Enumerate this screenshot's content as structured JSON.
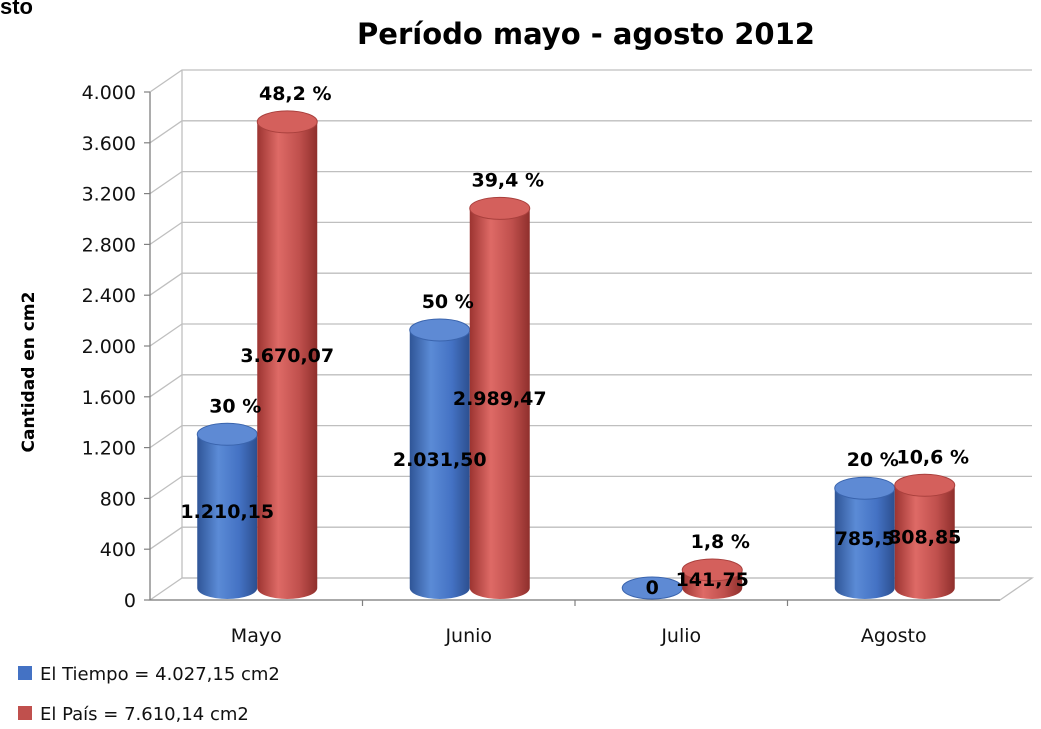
{
  "fragment": "sto",
  "chart_data": {
    "type": "bar",
    "title": "Período mayo - agosto 2012",
    "ylabel": "Cantidad en cm2",
    "xlabel": "",
    "ylim": [
      0,
      4000
    ],
    "yticks": [
      0,
      400,
      800,
      1200,
      1600,
      2000,
      2400,
      2800,
      3200,
      3600,
      4000
    ],
    "ytick_labels": [
      "0",
      "400",
      "800",
      "1.200",
      "1.600",
      "2.000",
      "2.400",
      "2.800",
      "3.200",
      "3.600",
      "4.000"
    ],
    "categories": [
      "Mayo",
      "Junio",
      "Julio",
      "Agosto"
    ],
    "grid": true,
    "legend_position": "bottom-left",
    "series": [
      {
        "name": "El Tiempo = 4.027,15 cm2",
        "color": "#4472C4",
        "values": [
          1210.15,
          2031.5,
          0,
          785.5
        ],
        "value_labels": [
          "1.210,15",
          "2.031,50",
          "0",
          "785,5"
        ],
        "percent_labels": [
          "30 %",
          "50 %",
          "",
          "20 %"
        ]
      },
      {
        "name": "El País = 7.610,14 cm2",
        "color": "#C0504D",
        "values": [
          3670.07,
          2989.47,
          141.75,
          808.85
        ],
        "value_labels": [
          "3.670,07",
          "2.989,47",
          "141,75",
          "808,85"
        ],
        "percent_labels": [
          "48,2 %",
          "39,4 %",
          "1,8 %",
          "10,6 %"
        ]
      }
    ]
  }
}
